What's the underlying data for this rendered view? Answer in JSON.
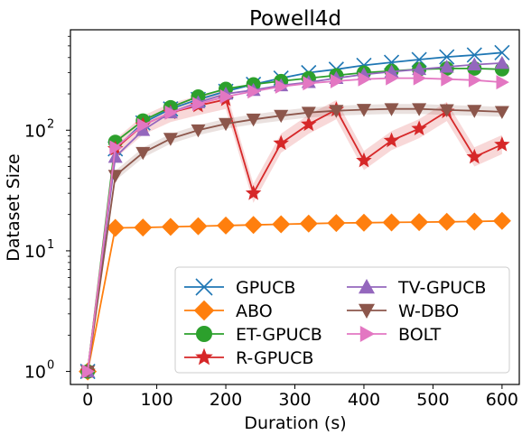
{
  "chart_data": {
    "type": "line",
    "title": "Powell4d",
    "xlabel": "Duration (s)",
    "ylabel": "Dataset Size",
    "y_scale": "log",
    "xlim": [
      -25,
      625
    ],
    "ylim": [
      0.78,
      680
    ],
    "x_ticks": [
      0,
      100,
      200,
      300,
      400,
      500,
      600
    ],
    "x_tick_labels": [
      "0",
      "100",
      "200",
      "300",
      "400",
      "500",
      "600"
    ],
    "y_ticks": [
      1,
      10,
      100
    ],
    "y_tick_labels": [
      "10",
      "10",
      "10"
    ],
    "y_tick_exponents": [
      "0",
      "1",
      "2"
    ],
    "legend_position": "lower-right",
    "legend_columns": 2,
    "x": [
      0,
      40,
      80,
      120,
      160,
      200,
      240,
      280,
      320,
      360,
      400,
      440,
      480,
      520,
      560,
      600
    ],
    "series": [
      {
        "name": "GPUCB",
        "color": "#1f77b4",
        "marker": "x",
        "values": [
          1,
          70,
          115,
          150,
          180,
          210,
          240,
          270,
          300,
          320,
          345,
          365,
          385,
          405,
          420,
          440
        ]
      },
      {
        "name": "ABO",
        "color": "#ff7f0e",
        "marker": "diamond",
        "values": [
          1,
          15.5,
          15.6,
          15.8,
          16.0,
          16.2,
          16.4,
          16.6,
          16.8,
          17.0,
          17.1,
          17.2,
          17.3,
          17.4,
          17.5,
          17.7
        ]
      },
      {
        "name": "ET-GPUCB",
        "color": "#2ca02c",
        "marker": "circle",
        "values": [
          1,
          80,
          120,
          155,
          190,
          220,
          240,
          255,
          270,
          285,
          300,
          310,
          320,
          325,
          325,
          320
        ]
      },
      {
        "name": "R-GPUCB",
        "color": "#d62728",
        "marker": "star",
        "values": [
          1,
          70,
          110,
          140,
          160,
          180,
          30,
          78,
          112,
          148,
          56,
          82,
          103,
          143,
          60,
          76
        ]
      },
      {
        "name": "TV-GPUCB",
        "color": "#9467bd",
        "marker": "triangle-up",
        "values": [
          1,
          60,
          100,
          140,
          170,
          200,
          215,
          235,
          250,
          270,
          290,
          305,
          320,
          335,
          350,
          360
        ]
      },
      {
        "name": "W-DBO",
        "color": "#8c564b",
        "marker": "triangle-down",
        "values": [
          1,
          42,
          65,
          85,
          100,
          113,
          123,
          132,
          140,
          145,
          148,
          150,
          150,
          147,
          145,
          142
        ]
      },
      {
        "name": "BOLT",
        "color": "#e377c2",
        "marker": "triangle-right",
        "values": [
          1,
          72,
          110,
          140,
          165,
          190,
          210,
          230,
          245,
          255,
          265,
          270,
          270,
          265,
          260,
          250
        ]
      }
    ]
  }
}
